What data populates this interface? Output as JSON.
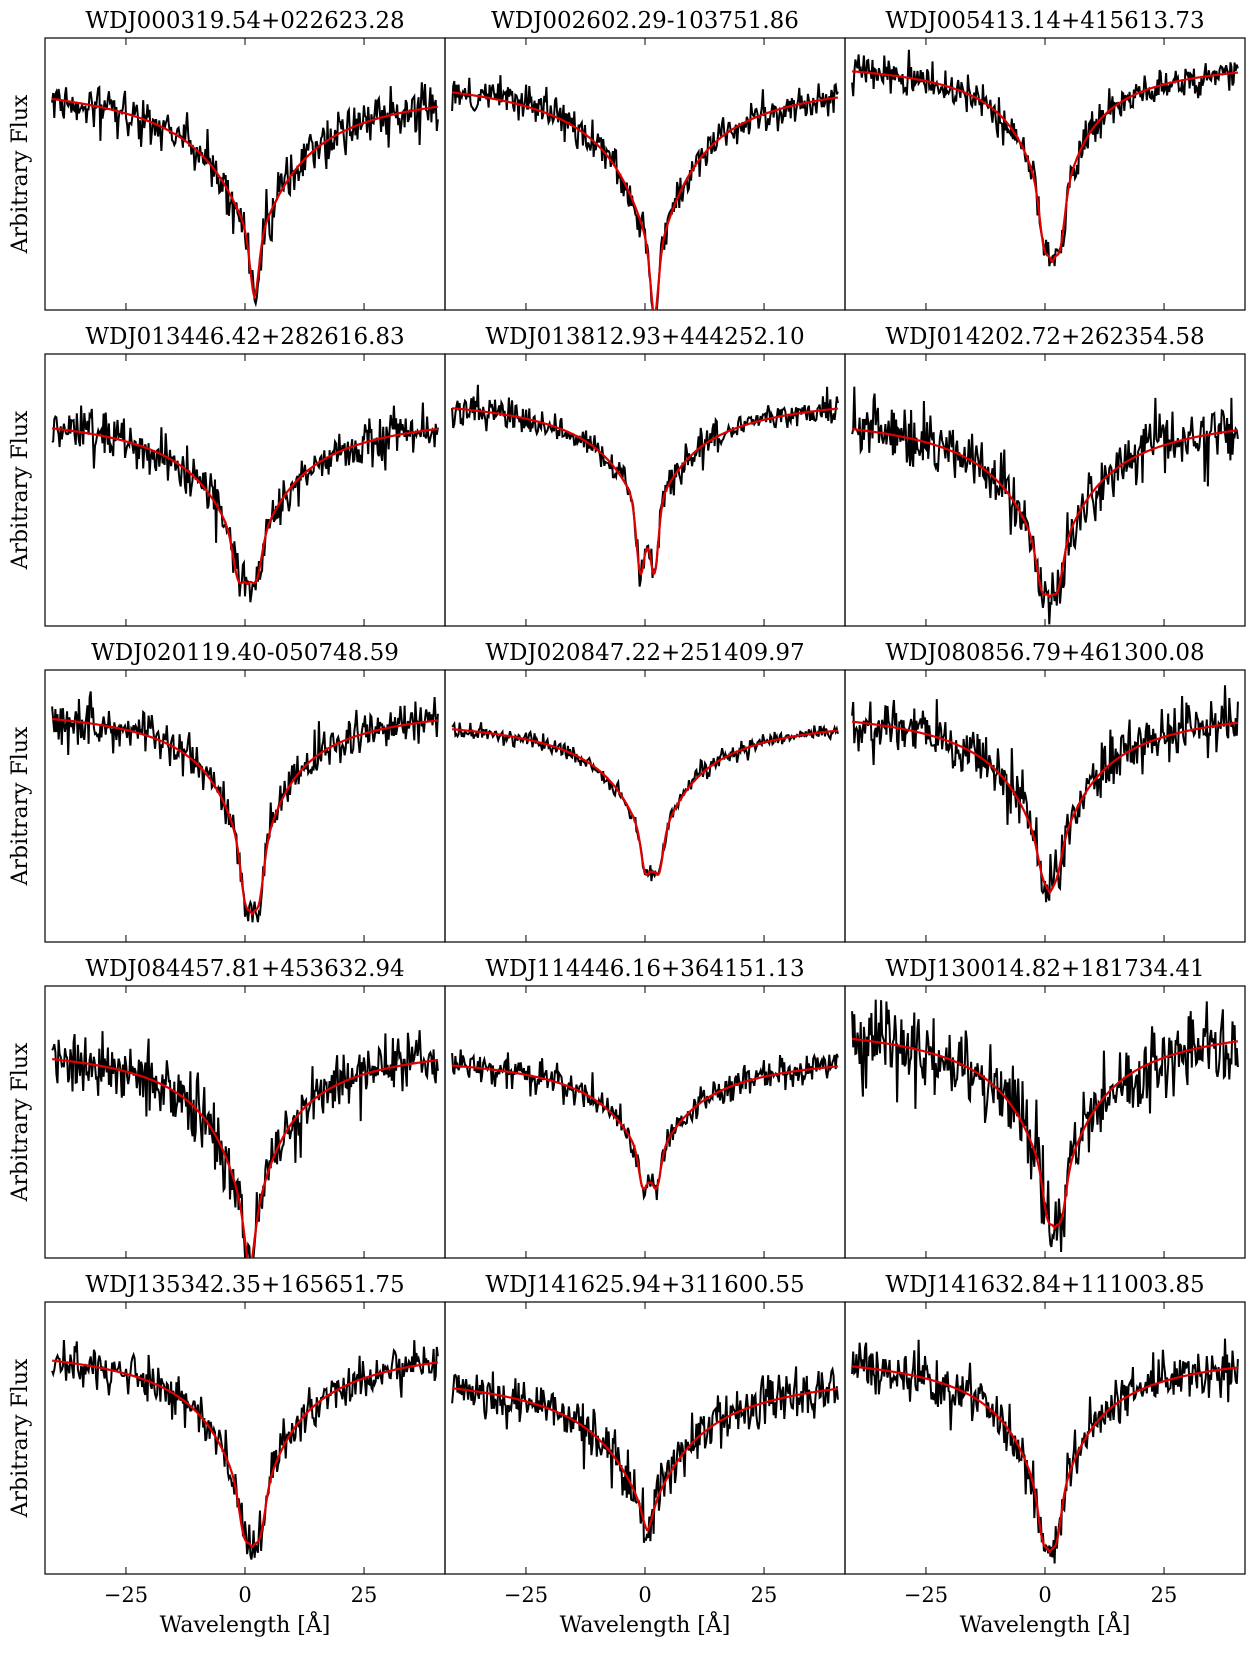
{
  "figure": {
    "layout": {
      "rows": 5,
      "cols": 3
    }
  },
  "chart_data": [
    {
      "type": "line",
      "title": "WDJ000319.54+022623.28",
      "ylabel": "Arbitrary Flux",
      "xlabel": "",
      "xticks": [
        "−25",
        "0",
        "25"
      ],
      "xlim": [
        -42,
        42
      ],
      "ylim": [
        0,
        1
      ],
      "center": 2.0,
      "cont_left": 0.86,
      "cont_right": 0.84,
      "depth": 0.62,
      "width": 14,
      "split": 0.0,
      "core_depth": 0.18,
      "core_width": 0.9,
      "noise": 0.045,
      "seed": 11,
      "colors": {
        "observed": "#000000",
        "model": "#e00000"
      }
    },
    {
      "type": "line",
      "title": "WDJ002602.29-103751.86",
      "ylabel": "",
      "xlabel": "",
      "xticks": [
        "−25",
        "0",
        "25"
      ],
      "xlim": [
        -42,
        42
      ],
      "ylim": [
        0,
        1
      ],
      "center": 2.0,
      "cont_left": 0.88,
      "cont_right": 0.87,
      "depth": 0.7,
      "width": 12,
      "split": 0.0,
      "core_depth": 0.2,
      "core_width": 0.8,
      "noise": 0.035,
      "seed": 12,
      "colors": {
        "observed": "#000000",
        "model": "#e00000"
      }
    },
    {
      "type": "line",
      "title": "WDJ005413.14+415613.73",
      "ylabel": "",
      "xlabel": "",
      "xticks": [
        "−25",
        "0",
        "25"
      ],
      "xlim": [
        -42,
        42
      ],
      "ylim": [
        0,
        1
      ],
      "center": 1.5,
      "cont_left": 0.93,
      "cont_right": 0.93,
      "depth": 0.72,
      "width": 8,
      "split": 3.5,
      "core_depth": 0.12,
      "core_width": 0.9,
      "noise": 0.035,
      "seed": 13,
      "colors": {
        "observed": "#000000",
        "model": "#e00000"
      }
    },
    {
      "type": "line",
      "title": "WDJ013446.42+282616.83",
      "ylabel": "Arbitrary Flux",
      "xlabel": "",
      "xticks": [
        "−25",
        "0",
        "25"
      ],
      "xlim": [
        -42,
        42
      ],
      "ylim": [
        0,
        1
      ],
      "center": 0.5,
      "cont_left": 0.8,
      "cont_right": 0.8,
      "depth": 0.62,
      "width": 12,
      "split": 4.0,
      "core_depth": 0.1,
      "core_width": 1.0,
      "noise": 0.045,
      "seed": 21,
      "colors": {
        "observed": "#000000",
        "model": "#e00000"
      }
    },
    {
      "type": "line",
      "title": "WDJ013812.93+444252.10",
      "ylabel": "",
      "xlabel": "",
      "xticks": [
        "−25",
        "0",
        "25"
      ],
      "xlim": [
        -42,
        42
      ],
      "ylim": [
        0,
        1
      ],
      "center": 0.5,
      "cont_left": 0.86,
      "cont_right": 0.86,
      "depth": 0.5,
      "width": 12,
      "split": 3.0,
      "core_depth": 0.22,
      "core_width": 0.8,
      "noise": 0.03,
      "seed": 22,
      "colors": {
        "observed": "#000000",
        "model": "#e00000"
      }
    },
    {
      "type": "line",
      "title": "WDJ014202.72+262354.58",
      "ylabel": "",
      "xlabel": "",
      "xticks": [
        "−25",
        "0",
        "25"
      ],
      "xlim": [
        -42,
        42
      ],
      "ylim": [
        0,
        1
      ],
      "center": 1.0,
      "cont_left": 0.8,
      "cont_right": 0.8,
      "depth": 0.65,
      "width": 12,
      "split": 3.5,
      "core_depth": 0.1,
      "core_width": 1.0,
      "noise": 0.055,
      "seed": 23,
      "colors": {
        "observed": "#000000",
        "model": "#e00000"
      }
    },
    {
      "type": "line",
      "title": "WDJ020119.40-050748.59",
      "ylabel": "Arbitrary Flux",
      "xlabel": "",
      "xticks": [
        "−25",
        "0",
        "25"
      ],
      "xlim": [
        -42,
        42
      ],
      "ylim": [
        0,
        1
      ],
      "center": 1.5,
      "cont_left": 0.88,
      "cont_right": 0.88,
      "depth": 0.72,
      "width": 9,
      "split": 3.0,
      "core_depth": 0.12,
      "core_width": 0.9,
      "noise": 0.04,
      "seed": 31,
      "colors": {
        "observed": "#000000",
        "model": "#e00000"
      }
    },
    {
      "type": "line",
      "title": "WDJ020847.22+251409.97",
      "ylabel": "",
      "xlabel": "",
      "xticks": [
        "−25",
        "0",
        "25"
      ],
      "xlim": [
        -42,
        42
      ],
      "ylim": [
        0,
        1
      ],
      "center": 1.5,
      "cont_left": 0.84,
      "cont_right": 0.84,
      "depth": 0.55,
      "width": 11,
      "split": 3.0,
      "core_depth": 0.1,
      "core_width": 0.8,
      "noise": 0.015,
      "seed": 32,
      "colors": {
        "observed": "#000000",
        "model": "#e00000"
      }
    },
    {
      "type": "line",
      "title": "WDJ080856.79+461300.08",
      "ylabel": "",
      "xlabel": "",
      "xticks": [
        "−25",
        "0",
        "25"
      ],
      "xlim": [
        -42,
        42
      ],
      "ylim": [
        0,
        1
      ],
      "center": 1.0,
      "cont_left": 0.88,
      "cont_right": 0.88,
      "depth": 0.66,
      "width": 11,
      "split": 3.0,
      "core_depth": 0.06,
      "core_width": 1.0,
      "noise": 0.05,
      "seed": 33,
      "colors": {
        "observed": "#000000",
        "model": "#e00000"
      }
    },
    {
      "type": "line",
      "title": "WDJ084457.81+453632.94",
      "ylabel": "Arbitrary Flux",
      "xlabel": "",
      "xticks": [
        "−25",
        "0",
        "25"
      ],
      "xlim": [
        -42,
        42
      ],
      "ylim": [
        0,
        1
      ],
      "center": 1.0,
      "cont_left": 0.8,
      "cont_right": 0.8,
      "depth": 0.72,
      "width": 10,
      "split": 0.0,
      "core_depth": 0.12,
      "core_width": 1.0,
      "noise": 0.055,
      "seed": 41,
      "colors": {
        "observed": "#000000",
        "model": "#e00000"
      }
    },
    {
      "type": "line",
      "title": "WDJ114446.16+364151.13",
      "ylabel": "",
      "xlabel": "",
      "xticks": [
        "−25",
        "0",
        "25"
      ],
      "xlim": [
        -42,
        42
      ],
      "ylim": [
        0,
        1
      ],
      "center": 1.0,
      "cont_left": 0.76,
      "cont_right": 0.76,
      "depth": 0.45,
      "width": 12,
      "split": 3.0,
      "core_depth": 0.1,
      "core_width": 0.8,
      "noise": 0.03,
      "seed": 42,
      "colors": {
        "observed": "#000000",
        "model": "#e00000"
      }
    },
    {
      "type": "line",
      "title": "WDJ130014.82+181734.41",
      "ylabel": "",
      "xlabel": "",
      "xticks": [
        "−25",
        "0",
        "25"
      ],
      "xlim": [
        -42,
        42
      ],
      "ylim": [
        0,
        1
      ],
      "center": 2.0,
      "cont_left": 0.88,
      "cont_right": 0.88,
      "depth": 0.72,
      "width": 11,
      "split": 3.0,
      "core_depth": 0.1,
      "core_width": 0.9,
      "noise": 0.07,
      "seed": 43,
      "colors": {
        "observed": "#000000",
        "model": "#e00000"
      }
    },
    {
      "type": "line",
      "title": "WDJ135342.35+165651.75",
      "ylabel": "Arbitrary Flux",
      "xlabel": "Wavelength [Å]",
      "xticks": [
        "−25",
        "0",
        "25"
      ],
      "xlim": [
        -42,
        42
      ],
      "ylim": [
        0,
        1
      ],
      "center": 1.5,
      "cont_left": 0.86,
      "cont_right": 0.86,
      "depth": 0.72,
      "width": 11,
      "split": 3.5,
      "core_depth": 0.1,
      "core_width": 1.0,
      "noise": 0.04,
      "seed": 51,
      "colors": {
        "observed": "#000000",
        "model": "#e00000"
      }
    },
    {
      "type": "line",
      "title": "WDJ141625.94+311600.55",
      "ylabel": "",
      "xlabel": "Wavelength [Å]",
      "xticks": [
        "−25",
        "0",
        "25"
      ],
      "xlim": [
        -42,
        42
      ],
      "ylim": [
        0,
        1
      ],
      "center": 0.5,
      "cont_left": 0.76,
      "cont_right": 0.76,
      "depth": 0.55,
      "width": 14,
      "split": 0.0,
      "core_depth": 0.05,
      "core_width": 1.0,
      "noise": 0.045,
      "seed": 52,
      "colors": {
        "observed": "#000000",
        "model": "#e00000"
      }
    },
    {
      "type": "line",
      "title": "WDJ141632.84+111003.85",
      "ylabel": "",
      "xlabel": "Wavelength [Å]",
      "xticks": [
        "−25",
        "0",
        "25"
      ],
      "xlim": [
        -42,
        42
      ],
      "ylim": [
        0,
        1
      ],
      "center": 1.0,
      "cont_left": 0.83,
      "cont_right": 0.83,
      "depth": 0.7,
      "width": 10,
      "split": 3.0,
      "core_depth": 0.1,
      "core_width": 0.9,
      "noise": 0.045,
      "seed": 53,
      "colors": {
        "observed": "#000000",
        "model": "#e00000"
      }
    }
  ]
}
